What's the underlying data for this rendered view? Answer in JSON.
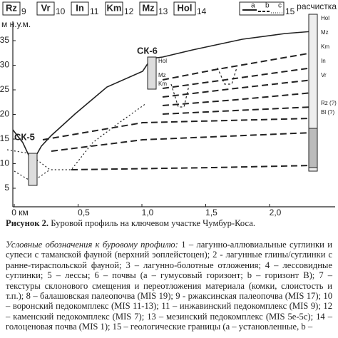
{
  "figure": {
    "legend": [
      {
        "code": "Rz",
        "num": "9"
      },
      {
        "code": "Vr",
        "num": "10"
      },
      {
        "code": "In",
        "num": "11"
      },
      {
        "code": "Km",
        "num": "12"
      },
      {
        "code": "Mz",
        "num": "13"
      },
      {
        "code": "Hol",
        "num": "14"
      }
    ],
    "boundary_legend": {
      "a": "a",
      "b": "b",
      "c": "c",
      "num": "15"
    },
    "clearing": "расчистка",
    "y_label": "м н.у.м.",
    "yticks": [
      5,
      10,
      15,
      20,
      25,
      30,
      35
    ],
    "xticks": [
      {
        "value": 0,
        "label": "0 км"
      },
      {
        "value": 0.5,
        "label": "0,5"
      },
      {
        "value": 1,
        "label": "1,0"
      },
      {
        "value": 1.5,
        "label": "1,5"
      },
      {
        "value": 2,
        "label": "2,0"
      }
    ],
    "wells": [
      "СК-5",
      "СК-6"
    ],
    "well6_layers": [
      "Hol",
      "Mz",
      "Km"
    ],
    "clearing_layers": [
      "Hol",
      "Mz",
      "Km",
      "In",
      "Vr",
      "Rz (?)",
      "Bl (?)"
    ]
  },
  "caption": {
    "label": "Рисунок 2.",
    "title": "Буровой профиль на ключевом участке Чумбур-Коса.",
    "legend_intro": "Условные обозначения к буровому профилю:",
    "legend_text": "1 – лагунно-аллювиальные суглинки и супеси с таманской фауной (верхний эоплейстоцен); 2 - лагунные глины/суглинки с ранне-тираспольской фауной; 3 – лагунно-болотные отложения; 4 – лессовидные суглинки; 5 – лессы; 6 – почвы (a – гумусовый горизонт; b – горизонт B); 7 – текстуры склонового смещения и переотложения материала (комки, слоистость и т.п.); 8 – балашовская палеопочва (MIS 19); 9 - ржаксинская палеопочва (MIS 17); 10 – воронский педокомплекс (MIS 11-13); 11 – инжавинский педокомплекс (MIS 9); 12 – каменский педокомплекс (MIS 7); 13 – мезинский педокомплекс (MIS 5e-5c); 14 – голоценовая почва (MIS 1); 15 – геологические границы (а – установленные, b –"
  }
}
